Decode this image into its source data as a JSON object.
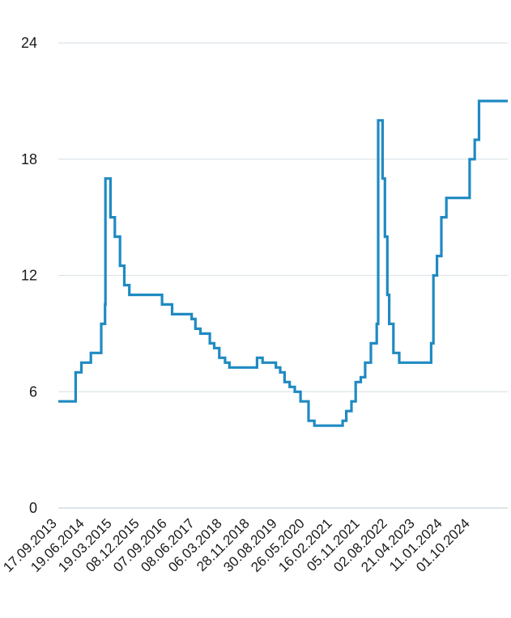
{
  "chart_data": {
    "type": "line",
    "step": true,
    "title": "",
    "xlabel": "",
    "ylabel": "",
    "x_range": [
      "2013-09-17",
      "2025-08-01"
    ],
    "ylim": [
      0,
      24
    ],
    "y_ticks": [
      0,
      6,
      12,
      18,
      24
    ],
    "x_tick_labels": [
      "17.09.2013",
      "19.06.2014",
      "19.03.2015",
      "08.12.2015",
      "07.09.2016",
      "08.06.2017",
      "06.03.2018",
      "28.11.2018",
      "30.08.2019",
      "26.05.2020",
      "16.02.2021",
      "05.11.2021",
      "02.08.2022",
      "21.04.2023",
      "11.01.2024",
      "01.10.2024"
    ],
    "grid": "horizontal",
    "legend": "none",
    "color": "#1f8ac2",
    "series": [
      {
        "x": [
          "2013-09-17",
          "2014-03-03",
          "2014-04-28",
          "2014-07-28",
          "2014-11-05",
          "2014-12-12",
          "2014-12-16",
          "2015-02-02",
          "2015-03-16",
          "2015-05-05",
          "2015-06-16",
          "2015-08-03",
          "2016-06-14",
          "2016-09-19",
          "2017-03-27",
          "2017-05-02",
          "2017-06-19",
          "2017-09-18",
          "2017-10-30",
          "2017-12-18",
          "2018-02-12",
          "2018-03-26",
          "2018-12-17",
          "2019-02-08",
          "2019-06-17",
          "2019-07-29",
          "2019-09-09",
          "2019-10-28",
          "2019-12-16",
          "2020-02-10",
          "2020-04-27",
          "2020-06-22",
          "2020-07-27",
          "2021-03-22",
          "2021-04-26",
          "2021-06-15",
          "2021-07-26",
          "2021-09-13",
          "2021-10-25",
          "2021-12-20",
          "2022-02-14",
          "2022-02-28",
          "2022-04-11",
          "2022-05-04",
          "2022-05-27",
          "2022-06-14",
          "2022-07-25",
          "2022-09-19",
          "2023-07-24",
          "2023-08-15",
          "2023-09-18",
          "2023-10-30",
          "2023-12-18",
          "2024-07-29",
          "2024-09-16",
          "2024-10-28",
          "2024-12-20",
          "2025-08-01"
        ],
        "values": [
          5.5,
          7.0,
          7.5,
          8.0,
          9.5,
          10.5,
          17.0,
          15.0,
          14.0,
          12.5,
          11.5,
          11.0,
          10.5,
          10.0,
          9.75,
          9.25,
          9.0,
          8.5,
          8.25,
          7.75,
          7.5,
          7.25,
          7.75,
          7.5,
          7.25,
          7.0,
          6.5,
          6.25,
          6.0,
          5.5,
          4.5,
          4.25,
          4.25,
          4.5,
          5.0,
          5.5,
          6.5,
          6.75,
          7.5,
          8.5,
          9.5,
          20.0,
          17.0,
          14.0,
          11.0,
          9.5,
          8.0,
          7.5,
          8.5,
          12.0,
          13.0,
          15.0,
          16.0,
          18.0,
          19.0,
          21.0,
          21.0,
          21.0
        ]
      }
    ]
  }
}
